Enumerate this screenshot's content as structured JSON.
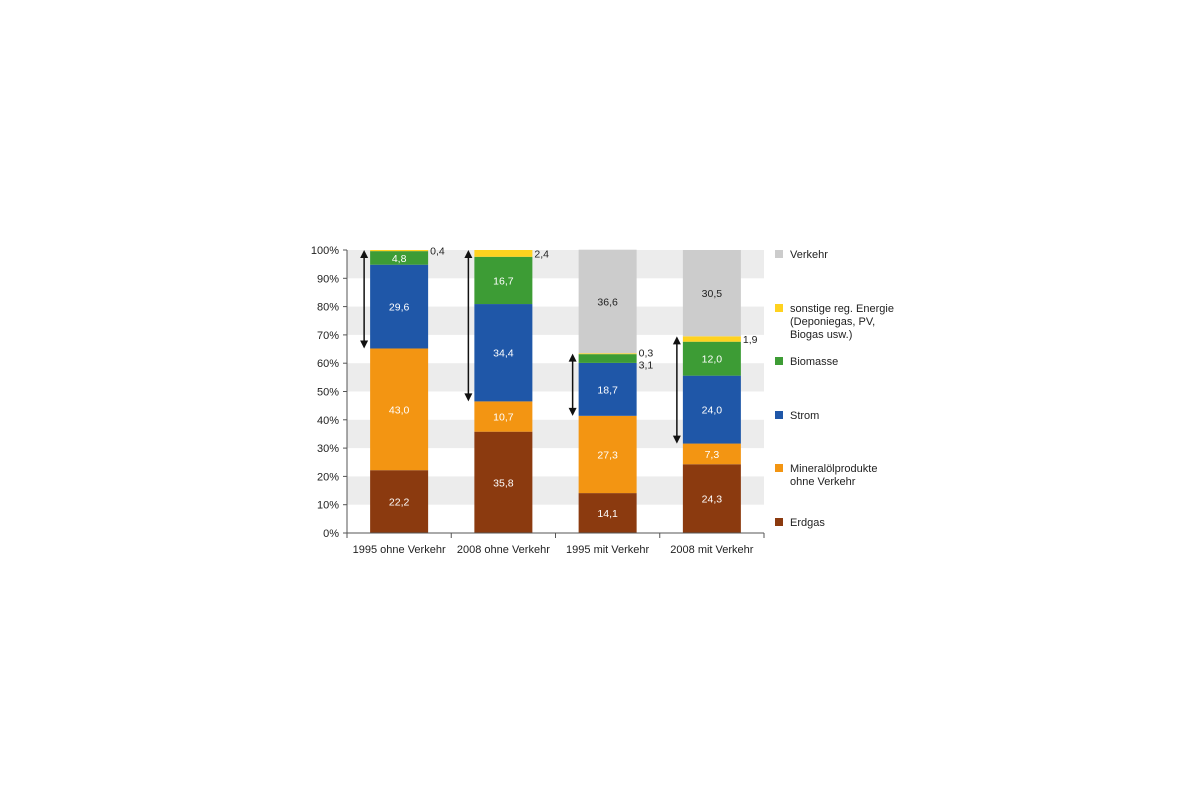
{
  "chart_data": {
    "type": "bar",
    "stacked": true,
    "categories": [
      "1995 ohne Verkehr",
      "2008 ohne Verkehr",
      "1995 mit Verkehr",
      "2008 mit Verkehr"
    ],
    "y_ticks": [
      "0%",
      "10%",
      "20%",
      "30%",
      "40%",
      "50%",
      "60%",
      "70%",
      "80%",
      "90%",
      "100%"
    ],
    "ylim": [
      0,
      100
    ],
    "grid": "horizontal bands",
    "legend_position": "right",
    "series": [
      {
        "name": "Erdgas",
        "color": "#8b3a0f",
        "values": [
          22.2,
          35.8,
          14.1,
          24.3
        ],
        "labels": [
          "22,2",
          "35,8",
          "14,1",
          "24,3"
        ]
      },
      {
        "name": "Mineralölprodukte ohne Verkehr",
        "color": "#f39512",
        "values": [
          43.0,
          10.7,
          27.3,
          7.3
        ],
        "labels": [
          "43,0",
          "10,7",
          "27,3",
          "7,3"
        ]
      },
      {
        "name": "Strom",
        "color": "#1f57a8",
        "values": [
          29.6,
          34.4,
          18.7,
          24.0
        ],
        "labels": [
          "29,6",
          "34,4",
          "18,7",
          "24,0"
        ]
      },
      {
        "name": "Biomasse",
        "color": "#3d9c35",
        "values": [
          4.8,
          16.7,
          3.1,
          12.0
        ],
        "labels": [
          "4,8",
          "16,7",
          "3,1",
          "12,0"
        ]
      },
      {
        "name": "sonstige reg. Energie (Deponiegas, PV, Biogas usw.)",
        "color": "#ffd21f",
        "values": [
          0.4,
          2.4,
          0.3,
          1.9
        ],
        "labels": [
          "0,4",
          "2,4",
          "0,3",
          "1,9"
        ]
      },
      {
        "name": "Verkehr",
        "color": "#cccccc",
        "values": [
          0,
          0,
          36.6,
          30.5
        ],
        "labels": [
          "",
          "",
          "36,6",
          "30,5"
        ]
      }
    ],
    "legend": [
      {
        "lines": [
          "Verkehr"
        ],
        "color": "#cccccc"
      },
      {
        "lines": [
          "sonstige reg. Energie",
          "(Deponiegas, PV,",
          "Biogas usw.)"
        ],
        "color": "#ffd21f"
      },
      {
        "lines": [
          "Biomasse"
        ],
        "color": "#3d9c35"
      },
      {
        "lines": [
          "Strom"
        ],
        "color": "#1f57a8"
      },
      {
        "lines": [
          "Mineralölprodukte",
          "ohne Verkehr"
        ],
        "color": "#f39512"
      },
      {
        "lines": [
          "Erdgas"
        ],
        "color": "#8b3a0f"
      }
    ],
    "arrows": [
      {
        "category": 0,
        "from": 65.2,
        "to": 100
      },
      {
        "category": 1,
        "from": 46.5,
        "to": 100
      },
      {
        "category": 2,
        "from": 41.4,
        "to": 63.4
      },
      {
        "category": 3,
        "from": 31.6,
        "to": 69.5
      }
    ]
  }
}
